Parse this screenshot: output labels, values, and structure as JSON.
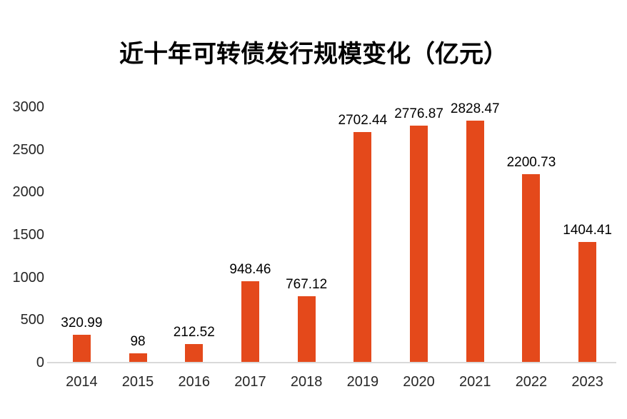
{
  "chart_data": {
    "type": "bar",
    "title": "近十年可转债发行规模变化（亿元）",
    "categories": [
      "2014",
      "2015",
      "2016",
      "2017",
      "2018",
      "2019",
      "2020",
      "2021",
      "2022",
      "2023"
    ],
    "values": [
      320.99,
      98,
      212.52,
      948.46,
      767.12,
      2702.44,
      2776.87,
      2828.47,
      2200.73,
      1404.41
    ],
    "value_labels": [
      "320.99",
      "98",
      "212.52",
      "948.46",
      "767.12",
      "2702.44",
      "2776.87",
      "2828.47",
      "2200.73",
      "1404.41"
    ],
    "xlabel": "",
    "ylabel": "",
    "ylim": [
      0,
      3000
    ],
    "yticks": [
      0,
      500,
      1000,
      1500,
      2000,
      2500,
      3000
    ],
    "grid": false,
    "legend": "none",
    "bar_color": "#E4491B",
    "axis_line_color": "#D9D9D9",
    "title_color": "#000000",
    "value_label_color": "#000000",
    "tick_label_color": "#262626",
    "background": "#FFFFFF"
  }
}
